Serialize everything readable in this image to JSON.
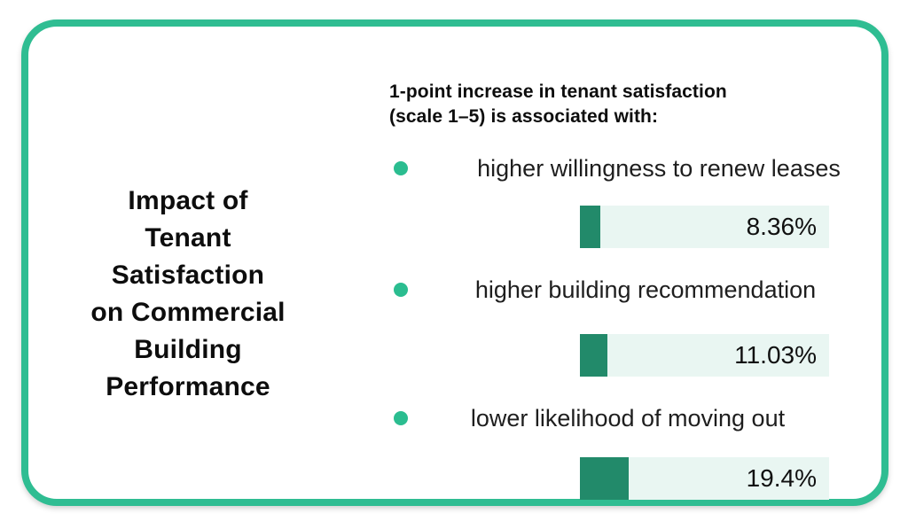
{
  "card": {
    "background": "#FFFFFF",
    "border_color": "#2FBD92"
  },
  "title": {
    "full_text": "Impact of Tenant Satisfaction on Commercial Building Performance",
    "lines": [
      "Impact of",
      "Tenant",
      "Satisfaction",
      "on Commercial",
      "Building",
      "Performance"
    ]
  },
  "heading": {
    "line1": "1-point increase in tenant satisfaction",
    "line2": "(scale 1–5) is associated with:"
  },
  "chart_data": {
    "type": "bar",
    "orientation": "horizontal",
    "unit": "percent",
    "scale_note": "fill width equals percentage of full track (track = 100%)",
    "items": [
      {
        "label": "higher willingness to renew leases",
        "value": 8.36,
        "display": "8.36%"
      },
      {
        "label": "higher building recommendation",
        "value": 11.03,
        "display": "11.03%"
      },
      {
        "label": "lower likelihood of moving out",
        "value": 19.4,
        "display": "19.4%"
      }
    ],
    "colors": {
      "bar_fill": "#228A6A",
      "bar_track": "#E9F6F2",
      "bullet": "#2BBD90",
      "border": "#2FBD92"
    }
  }
}
